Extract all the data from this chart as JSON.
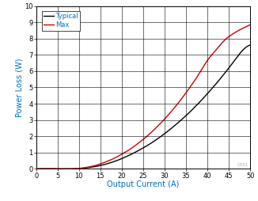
{
  "title": "",
  "xlabel": "Output Current (A)",
  "ylabel": "Power Loss (W)",
  "xlim": [
    0,
    50
  ],
  "ylim": [
    0,
    10
  ],
  "xticks": [
    0,
    5,
    10,
    15,
    20,
    25,
    30,
    35,
    40,
    45,
    50
  ],
  "yticks": [
    0,
    1,
    2,
    3,
    4,
    5,
    6,
    7,
    8,
    9,
    10
  ],
  "typical_color": "#000000",
  "max_color": "#cc0000",
  "label_color": "#0070c0",
  "typical_label": "Typical",
  "max_label": "Max",
  "watermark": "C001",
  "typical_x": [
    0,
    5,
    8,
    10,
    12,
    14,
    16,
    18,
    20,
    22,
    24,
    26,
    28,
    30,
    32,
    34,
    36,
    38,
    40,
    42,
    44,
    46,
    48,
    50
  ],
  "typical_y": [
    0,
    0,
    0,
    0.02,
    0.07,
    0.15,
    0.27,
    0.43,
    0.63,
    0.87,
    1.14,
    1.44,
    1.78,
    2.16,
    2.58,
    3.03,
    3.52,
    4.05,
    4.62,
    5.22,
    5.86,
    6.54,
    7.22,
    7.6
  ],
  "max_x": [
    0,
    5,
    8,
    10,
    12,
    14,
    16,
    18,
    20,
    22,
    24,
    26,
    28,
    30,
    32,
    34,
    36,
    38,
    40,
    42,
    44,
    46,
    48,
    50
  ],
  "max_y": [
    0,
    0,
    0,
    0.03,
    0.1,
    0.22,
    0.4,
    0.62,
    0.9,
    1.22,
    1.6,
    2.03,
    2.52,
    3.06,
    3.66,
    4.32,
    5.04,
    5.82,
    6.66,
    7.3,
    7.9,
    8.3,
    8.6,
    8.85
  ]
}
